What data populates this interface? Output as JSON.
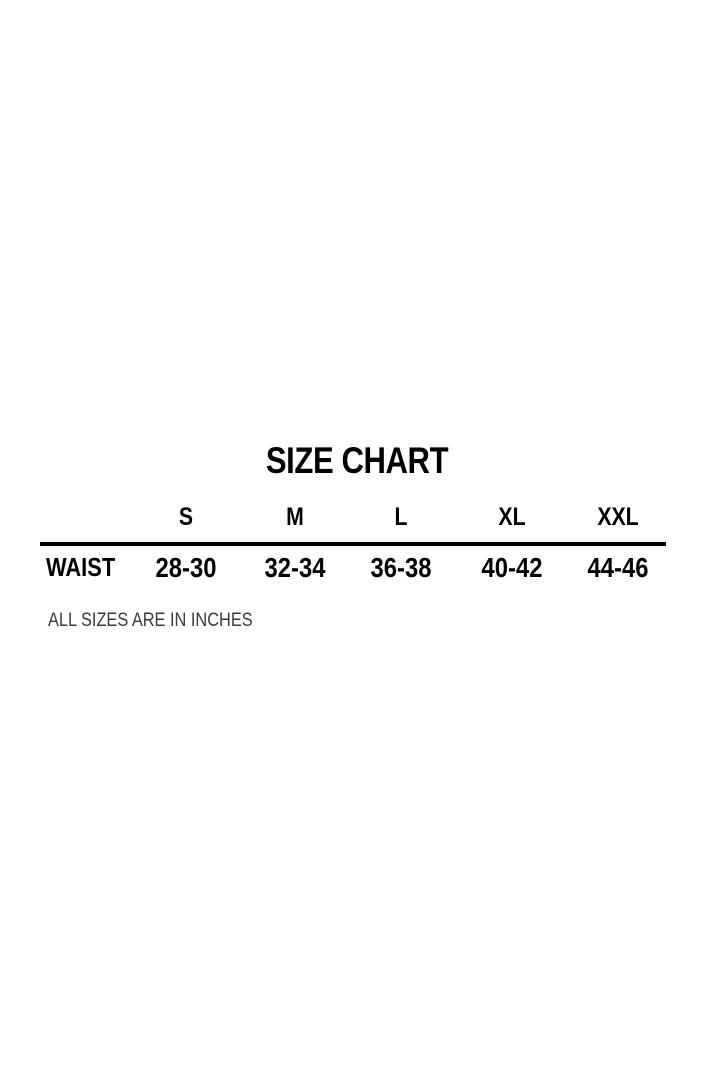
{
  "title": "SIZE CHART",
  "sizes": [
    "S",
    "M",
    "L",
    "XL",
    "XXL"
  ],
  "rows": [
    {
      "label": "WAIST",
      "values": [
        "28-30",
        "32-34",
        "36-38",
        "40-42",
        "44-46"
      ]
    }
  ],
  "note": "ALL SIZES ARE IN INCHES"
}
